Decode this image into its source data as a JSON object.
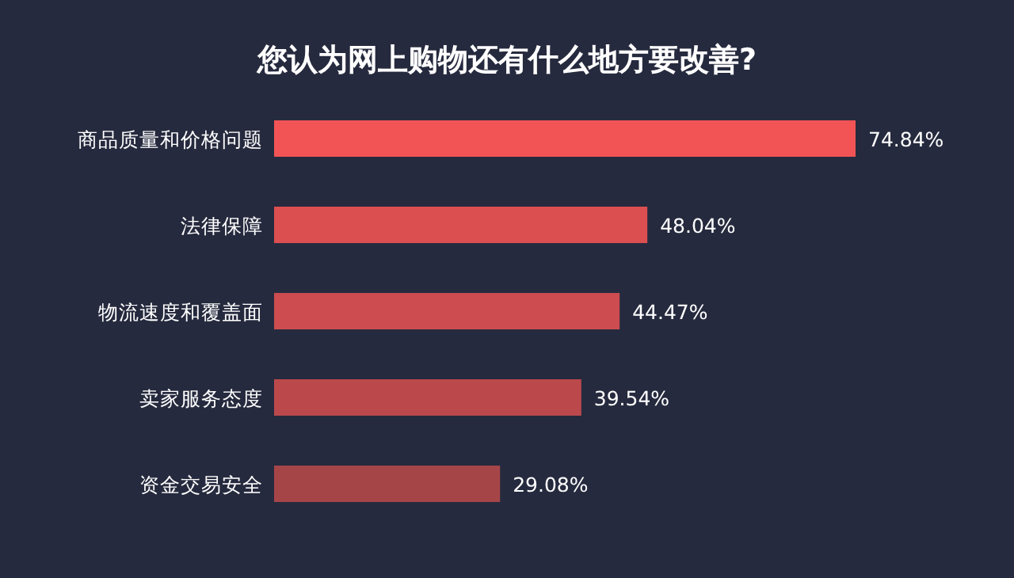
{
  "chart_data": {
    "type": "bar",
    "orientation": "horizontal",
    "title": "您认为网上购物还有什么地方要改善?",
    "categories": [
      "商品质量和价格问题",
      "法律保障",
      "物流速度和覆盖面",
      "卖家服务态度",
      "资金交易安全"
    ],
    "values": [
      74.84,
      48.04,
      44.47,
      39.54,
      29.08
    ],
    "value_labels": [
      "74.84%",
      "48.04%",
      "44.47%",
      "39.54%",
      "29.08%"
    ],
    "colors": [
      "#f25456",
      "#dc4f51",
      "#cc4c4f",
      "#bb494c",
      "#a64548"
    ]
  }
}
